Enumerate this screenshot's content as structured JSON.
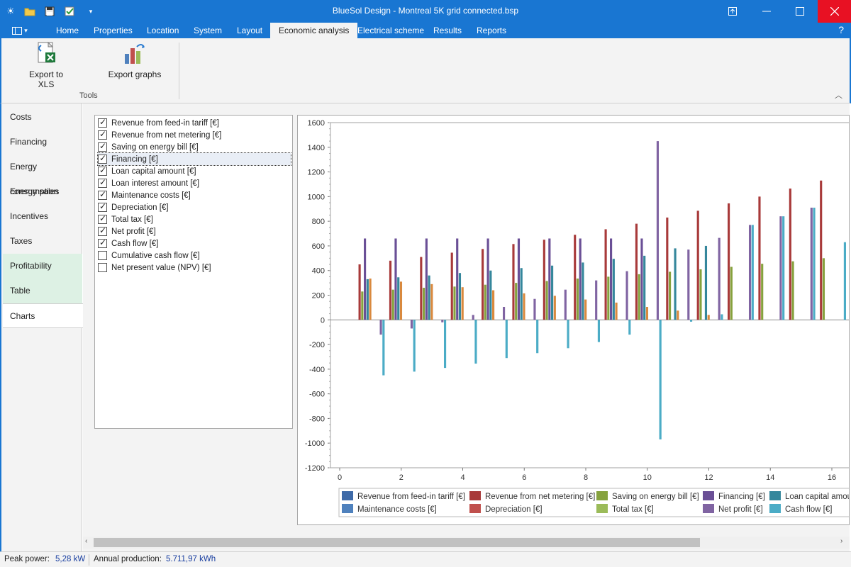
{
  "window": {
    "title": "BlueSol Design - Montreal 5K grid connected.bsp"
  },
  "quick_access": [
    "sun-icon",
    "open-folder-icon",
    "save-icon",
    "check-icon",
    "customize-icon"
  ],
  "ribbon": {
    "tabs": [
      "Home",
      "Properties",
      "Location",
      "System",
      "Layout",
      "Economic analysis",
      "Electrical scheme",
      "Results",
      "Reports"
    ],
    "active_tab": "Economic analysis",
    "buttons": {
      "export_xls": "Export to XLS",
      "export_graphs": "Export graphs"
    },
    "group_label": "Tools",
    "help": "?"
  },
  "nav": {
    "items": [
      "Costs",
      "Financing",
      "Energy consumption",
      "Energy sales",
      "Incentives",
      "Taxes",
      "Profitability",
      "Table",
      "Charts"
    ],
    "active": "Charts"
  },
  "series_list": [
    {
      "label": "Revenue from feed-in tariff [€]",
      "checked": true
    },
    {
      "label": "Revenue from net metering [€]",
      "checked": true
    },
    {
      "label": "Saving on energy bill [€]",
      "checked": true
    },
    {
      "label": "Financing [€]",
      "checked": true
    },
    {
      "label": "Loan capital amount [€]",
      "checked": true
    },
    {
      "label": "Loan interest amount [€]",
      "checked": true
    },
    {
      "label": "Maintenance costs [€]",
      "checked": true
    },
    {
      "label": "Depreciation [€]",
      "checked": true
    },
    {
      "label": "Total tax [€]",
      "checked": true
    },
    {
      "label": "Net profit [€]",
      "checked": true
    },
    {
      "label": "Cash flow [€]",
      "checked": true
    },
    {
      "label": "Cumulative cash flow [€]",
      "checked": false
    },
    {
      "label": "Net present value (NPV) [€]",
      "checked": false
    }
  ],
  "chart_data": {
    "type": "bar",
    "ylim": [
      -1200,
      1600
    ],
    "yticks": [
      -1200,
      -1000,
      -800,
      -600,
      -400,
      -200,
      0,
      200,
      400,
      600,
      800,
      1000,
      1200,
      1400,
      1600
    ],
    "xticks": [
      0,
      2,
      4,
      6,
      8,
      10,
      12,
      14,
      16
    ],
    "x": [
      1,
      2,
      3,
      4,
      5,
      6,
      7,
      8,
      9,
      10,
      11,
      12,
      13,
      14,
      15,
      16
    ],
    "grid": false,
    "legend_position": "bottom",
    "series": [
      {
        "name": "Revenue from feed-in tariff [€]",
        "color": "#3e6aa8",
        "values": [
          0,
          0,
          0,
          0,
          0,
          0,
          0,
          0,
          0,
          0,
          0,
          0,
          0,
          0,
          0,
          0
        ]
      },
      {
        "name": "Revenue from net metering [€]",
        "color": "#a83a3a",
        "values": [
          450,
          480,
          510,
          545,
          575,
          615,
          650,
          690,
          735,
          780,
          830,
          885,
          945,
          1000,
          1065,
          1130
        ]
      },
      {
        "name": "Saving on energy bill [€]",
        "color": "#86a23e",
        "values": [
          230,
          245,
          260,
          270,
          285,
          300,
          315,
          335,
          350,
          370,
          390,
          410,
          430,
          455,
          475,
          500
        ]
      },
      {
        "name": "Financing [€]",
        "color": "#6a4f96",
        "values": [
          660,
          660,
          660,
          660,
          660,
          660,
          660,
          660,
          660,
          660,
          0,
          0,
          0,
          0,
          0,
          0
        ]
      },
      {
        "name": "Loan capital amount [€]",
        "color": "#35879c",
        "values": [
          330,
          345,
          360,
          380,
          400,
          420,
          440,
          465,
          495,
          520,
          580,
          600,
          0,
          0,
          0,
          0
        ]
      },
      {
        "name": "Loan interest amount [€]",
        "color": "#d9893e",
        "values": [
          335,
          310,
          290,
          265,
          240,
          215,
          195,
          165,
          140,
          105,
          75,
          40,
          0,
          0,
          0,
          0
        ]
      },
      {
        "name": "Maintenance costs [€]",
        "color": "#4f81bd",
        "values": [
          0,
          0,
          0,
          0,
          0,
          0,
          0,
          0,
          0,
          0,
          0,
          0,
          0,
          0,
          0,
          0
        ]
      },
      {
        "name": "Depreciation [€]",
        "color": "#c0504d",
        "values": [
          0,
          0,
          0,
          0,
          0,
          0,
          0,
          0,
          0,
          0,
          0,
          0,
          0,
          0,
          0,
          0
        ]
      },
      {
        "name": "Total tax [€]",
        "color": "#9bbb59",
        "values": [
          0,
          0,
          0,
          0,
          0,
          0,
          0,
          0,
          0,
          0,
          0,
          0,
          0,
          0,
          0,
          0
        ]
      },
      {
        "name": "Net profit [€]",
        "color": "#8064a2",
        "values": [
          -120,
          -70,
          -20,
          40,
          105,
          170,
          245,
          320,
          395,
          1450,
          570,
          665,
          770,
          840,
          910,
          0
        ]
      },
      {
        "name": "Cash flow [€]",
        "color": "#4bacc6",
        "values": [
          -450,
          -420,
          -390,
          -355,
          -310,
          -270,
          -230,
          -180,
          -120,
          -970,
          -15,
          45,
          770,
          840,
          910,
          630
        ]
      }
    ],
    "legend": [
      {
        "name": "Revenue from feed-in tariff [€]",
        "color": "#3e6aa8"
      },
      {
        "name": "Revenue from net metering [€]",
        "color": "#a83a3a"
      },
      {
        "name": "Saving on energy bill [€]",
        "color": "#86a23e"
      },
      {
        "name": "Financing [€]",
        "color": "#6a4f96"
      },
      {
        "name": "Loan capital amou",
        "color": "#35879c"
      },
      {
        "name": "Maintenance costs [€]",
        "color": "#4f81bd"
      },
      {
        "name": "Depreciation [€]",
        "color": "#c0504d"
      },
      {
        "name": "Total tax [€]",
        "color": "#9bbb59"
      },
      {
        "name": "Net profit [€]",
        "color": "#8064a2"
      },
      {
        "name": "Cash flow [€]",
        "color": "#4bacc6"
      }
    ]
  },
  "status": {
    "peak_power_label": "Peak power:",
    "peak_power_value": "5,28 kW",
    "annual_label": "Annual production:",
    "annual_value": "5.711,97 kWh"
  }
}
